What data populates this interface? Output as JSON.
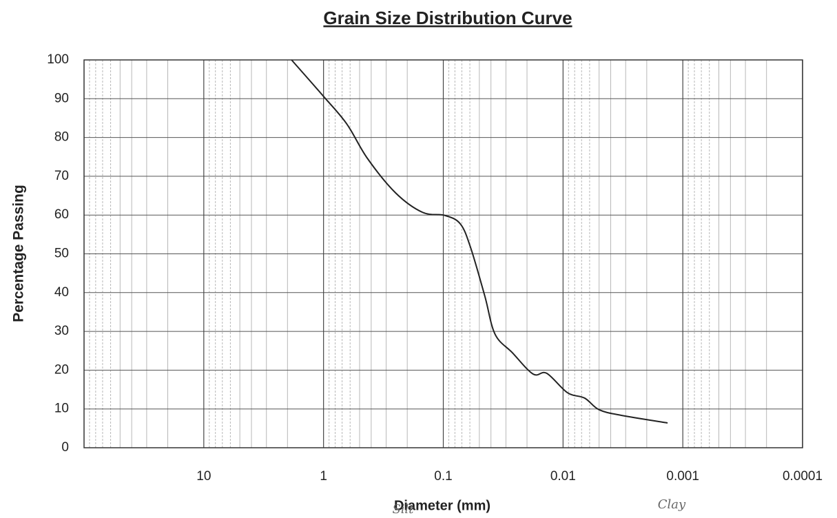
{
  "chart_data": {
    "type": "line",
    "title": "Grain Size Distribution Curve",
    "x_label": "Diameter (mm)",
    "y_label": "Percentage Passing",
    "annotations": [
      "Silt",
      "Clay"
    ],
    "x_scale": "log",
    "x_reversed": true,
    "xlim": [
      100,
      0.0001
    ],
    "xticks": [
      10,
      1,
      0.1,
      0.01,
      0.001,
      0.0001
    ],
    "ylim": [
      0,
      100
    ],
    "yticks": [
      0,
      10,
      20,
      30,
      40,
      50,
      60,
      70,
      80,
      90,
      100
    ],
    "grid": true,
    "minor_grid": true,
    "series": [
      {
        "color": "#222222",
        "x": [
          1.85,
          1,
          0.64,
          0.43,
          0.25,
          0.149,
          0.097,
          0.072,
          0.059,
          0.045,
          0.037,
          0.0265,
          0.0178,
          0.0137,
          0.0092,
          0.0066,
          0.005,
          0.0032,
          0.00134
        ],
        "values": [
          100,
          90.6,
          83.5,
          74.6,
          65.7,
          60.7,
          59.9,
          57.7,
          51.5,
          39.1,
          29.3,
          24.5,
          19,
          19.2,
          14.2,
          12.8,
          9.8,
          8.3,
          6.4
        ]
      }
    ]
  }
}
